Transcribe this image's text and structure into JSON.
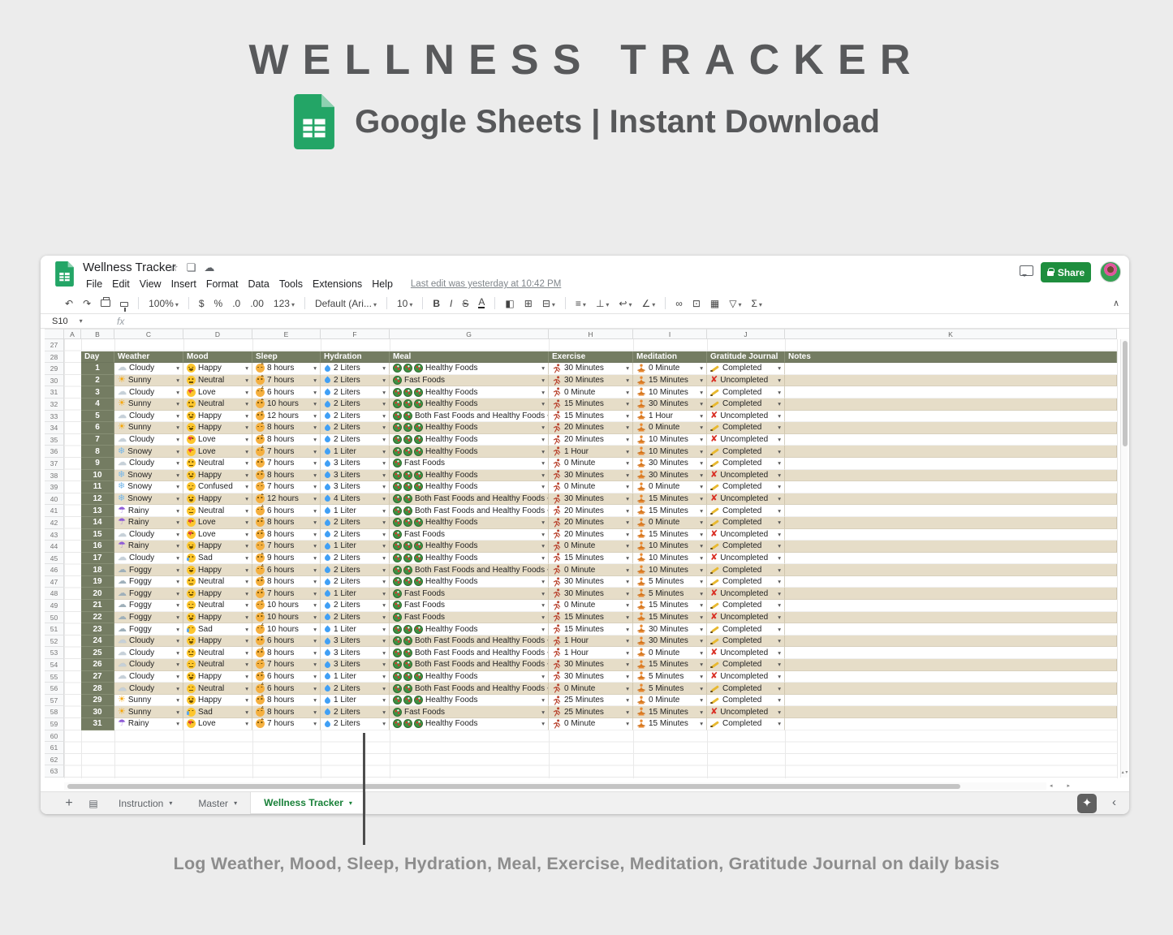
{
  "hero": {
    "title": "WELLNESS TRACKER",
    "subtitle": "Google Sheets | Instant Download"
  },
  "caption": "Log Weather, Mood, Sleep, Hydration, Meal, Exercise, Meditation, Gratitude Journal on daily basis",
  "colors": {
    "sheets_green": "#23a566",
    "share_green": "#1e8e3e",
    "active_tab_green": "#188038",
    "header_olive": "#747c62",
    "row_beige": "#e6ddc8",
    "uncompleted_red": "#d93025"
  },
  "window": {
    "doc_title": "Wellness Tracker",
    "menus": [
      "File",
      "Edit",
      "View",
      "Insert",
      "Format",
      "Data",
      "Tools",
      "Extensions",
      "Help"
    ],
    "last_edit": "Last edit was yesterday at 10:42 PM",
    "share_label": "Share",
    "name_box": "S10",
    "fx_label": "fx",
    "toolbar": [
      {
        "name": "undo-icon",
        "glyph": "↶"
      },
      {
        "name": "redo-icon",
        "glyph": "↷"
      },
      {
        "name": "print-icon",
        "css": "i-print"
      },
      {
        "name": "paint-format-icon",
        "css": "i-paint"
      },
      {
        "name": "divider"
      },
      {
        "name": "zoom-select",
        "glyph": "100%",
        "dd": true
      },
      {
        "name": "divider"
      },
      {
        "name": "currency-icon",
        "glyph": "$"
      },
      {
        "name": "percent-icon",
        "glyph": "%"
      },
      {
        "name": "decrease-decimal-icon",
        "glyph": ".0"
      },
      {
        "name": "increase-decimal-icon",
        "glyph": ".00"
      },
      {
        "name": "more-formats-icon",
        "glyph": "123",
        "dd": true
      },
      {
        "name": "divider"
      },
      {
        "name": "font-select",
        "glyph": "Default (Ari...",
        "dd": true
      },
      {
        "name": "divider"
      },
      {
        "name": "font-size-select",
        "glyph": "10",
        "dd": true
      },
      {
        "name": "divider"
      },
      {
        "name": "bold-icon",
        "glyph": "B",
        "cls": "b"
      },
      {
        "name": "italic-icon",
        "glyph": "I",
        "cls": "i"
      },
      {
        "name": "strikethrough-icon",
        "glyph": "S",
        "cls": "s"
      },
      {
        "name": "text-color-icon",
        "glyph": "A",
        "cls": "a"
      },
      {
        "name": "divider"
      },
      {
        "name": "fill-color-icon",
        "glyph": "◧"
      },
      {
        "name": "borders-icon",
        "glyph": "⊞"
      },
      {
        "name": "merge-cells-icon",
        "glyph": "⊟",
        "dd": true
      },
      {
        "name": "divider"
      },
      {
        "name": "horizontal-align-icon",
        "glyph": "≡",
        "dd": true
      },
      {
        "name": "vertical-align-icon",
        "glyph": "⊥",
        "dd": true
      },
      {
        "name": "text-wrap-icon",
        "glyph": "↩",
        "dd": true
      },
      {
        "name": "text-rotation-icon",
        "glyph": "∠",
        "dd": true
      },
      {
        "name": "divider"
      },
      {
        "name": "insert-link-icon",
        "glyph": "∞"
      },
      {
        "name": "insert-comment-icon",
        "glyph": "⊡"
      },
      {
        "name": "insert-chart-icon",
        "glyph": "▦"
      },
      {
        "name": "filter-icon",
        "glyph": "▽",
        "dd": true
      },
      {
        "name": "functions-icon",
        "glyph": "Σ",
        "dd": true
      }
    ],
    "collapse_glyph": "∧",
    "column_letters": [
      "A",
      "B",
      "C",
      "D",
      "E",
      "F",
      "G",
      "H",
      "I",
      "J",
      "K"
    ],
    "row_start": 27,
    "row_end": 63,
    "tabs": [
      {
        "label": "Instruction",
        "active": false
      },
      {
        "label": "Master",
        "active": false
      },
      {
        "label": "Wellness Tracker",
        "active": true
      }
    ],
    "tabbar_icons": {
      "add_sheet": "+",
      "all_sheets": "▤",
      "explore": "✦",
      "show_panel": "‹"
    },
    "titlebar_icons": {
      "star": "☆",
      "move_to_folder": "❏",
      "cloud_status": "☁"
    },
    "scroll_icons": {
      "up": "▴",
      "down": "▾",
      "left": "◂",
      "right": "▸"
    }
  },
  "table": {
    "headers": [
      "Day",
      "Weather",
      "Mood",
      "Sleep",
      "Hydration",
      "Meal",
      "Exercise",
      "Meditation",
      "Gratitude Journal",
      "Notes"
    ],
    "weather_glyphs": {
      "Sunny": "☀",
      "Cloudy": "☁",
      "Snowy": "❄",
      "Rainy": "☂",
      "Foggy": "☁"
    },
    "meal_icon_counts": {
      "Healthy Foods": 3,
      "Fast Foods": 1,
      "Both Fast Foods and Healthy Foods": 2
    },
    "dropdown_glyph": "▾",
    "rows": [
      {
        "day": 1,
        "weather": "Cloudy",
        "mood": "Happy",
        "sleep": "8 hours",
        "hydration": "2 Liters",
        "meal": "Healthy Foods",
        "exercise": "30 Minutes",
        "meditation": "0 Minute",
        "gratitude": "Completed",
        "notes": ""
      },
      {
        "day": 2,
        "weather": "Sunny",
        "mood": "Neutral",
        "sleep": "7 hours",
        "hydration": "2 Liters",
        "meal": "Fast Foods",
        "exercise": "30 Minutes",
        "meditation": "15 Minutes",
        "gratitude": "Uncompleted",
        "notes": ""
      },
      {
        "day": 3,
        "weather": "Cloudy",
        "mood": "Love",
        "sleep": "6 hours",
        "hydration": "2 Liters",
        "meal": "Healthy Foods",
        "exercise": "0 Minute",
        "meditation": "10 Minutes",
        "gratitude": "Completed",
        "notes": ""
      },
      {
        "day": 4,
        "weather": "Sunny",
        "mood": "Neutral",
        "sleep": "10 hours",
        "hydration": "2 Liters",
        "meal": "Healthy Foods",
        "exercise": "15 Minutes",
        "meditation": "30 Minutes",
        "gratitude": "Completed",
        "notes": ""
      },
      {
        "day": 5,
        "weather": "Cloudy",
        "mood": "Happy",
        "sleep": "12 hours",
        "hydration": "2 Liters",
        "meal": "Both Fast Foods and Healthy Foods",
        "exercise": "15 Minutes",
        "meditation": "1 Hour",
        "gratitude": "Uncompleted",
        "notes": ""
      },
      {
        "day": 6,
        "weather": "Sunny",
        "mood": "Happy",
        "sleep": "8 hours",
        "hydration": "2 Liters",
        "meal": "Healthy Foods",
        "exercise": "20 Minutes",
        "meditation": "0 Minute",
        "gratitude": "Completed",
        "notes": ""
      },
      {
        "day": 7,
        "weather": "Cloudy",
        "mood": "Love",
        "sleep": "8 hours",
        "hydration": "2 Liters",
        "meal": "Healthy Foods",
        "exercise": "20 Minutes",
        "meditation": "10 Minutes",
        "gratitude": "Uncompleted",
        "notes": ""
      },
      {
        "day": 8,
        "weather": "Snowy",
        "mood": "Love",
        "sleep": "7 hours",
        "hydration": "1 Liter",
        "meal": "Healthy Foods",
        "exercise": "1 Hour",
        "meditation": "10 Minutes",
        "gratitude": "Completed",
        "notes": ""
      },
      {
        "day": 9,
        "weather": "Cloudy",
        "mood": "Neutral",
        "sleep": "7 hours",
        "hydration": "3 Liters",
        "meal": "Fast Foods",
        "exercise": "0 Minute",
        "meditation": "30 Minutes",
        "gratitude": "Completed",
        "notes": ""
      },
      {
        "day": 10,
        "weather": "Snowy",
        "mood": "Happy",
        "sleep": "8 hours",
        "hydration": "3 Liters",
        "meal": "Healthy Foods",
        "exercise": "30 Minutes",
        "meditation": "30 Minutes",
        "gratitude": "Uncompleted",
        "notes": ""
      },
      {
        "day": 11,
        "weather": "Snowy",
        "mood": "Confused",
        "sleep": "7 hours",
        "hydration": "3 Liters",
        "meal": "Healthy Foods",
        "exercise": "0 Minute",
        "meditation": "0 Minute",
        "gratitude": "Completed",
        "notes": ""
      },
      {
        "day": 12,
        "weather": "Snowy",
        "mood": "Happy",
        "sleep": "12 hours",
        "hydration": "4 Liters",
        "meal": "Both Fast Foods and Healthy Foods",
        "exercise": "30 Minutes",
        "meditation": "15 Minutes",
        "gratitude": "Uncompleted",
        "notes": ""
      },
      {
        "day": 13,
        "weather": "Rainy",
        "mood": "Neutral",
        "sleep": "6 hours",
        "hydration": "1 Liter",
        "meal": "Both Fast Foods and Healthy Foods",
        "exercise": "20 Minutes",
        "meditation": "15 Minutes",
        "gratitude": "Completed",
        "notes": ""
      },
      {
        "day": 14,
        "weather": "Rainy",
        "mood": "Love",
        "sleep": "8 hours",
        "hydration": "2 Liters",
        "meal": "Healthy Foods",
        "exercise": "20 Minutes",
        "meditation": "0 Minute",
        "gratitude": "Completed",
        "notes": ""
      },
      {
        "day": 15,
        "weather": "Cloudy",
        "mood": "Love",
        "sleep": "8 hours",
        "hydration": "2 Liters",
        "meal": "Fast Foods",
        "exercise": "20 Minutes",
        "meditation": "15 Minutes",
        "gratitude": "Uncompleted",
        "notes": ""
      },
      {
        "day": 16,
        "weather": "Rainy",
        "mood": "Happy",
        "sleep": "7 hours",
        "hydration": "1 Liter",
        "meal": "Healthy Foods",
        "exercise": "0 Minute",
        "meditation": "10 Minutes",
        "gratitude": "Completed",
        "notes": ""
      },
      {
        "day": 17,
        "weather": "Cloudy",
        "mood": "Sad",
        "sleep": "9 hours",
        "hydration": "2 Liters",
        "meal": "Healthy Foods",
        "exercise": "15 Minutes",
        "meditation": "10 Minutes",
        "gratitude": "Uncompleted",
        "notes": ""
      },
      {
        "day": 18,
        "weather": "Foggy",
        "mood": "Happy",
        "sleep": "6 hours",
        "hydration": "2 Liters",
        "meal": "Both Fast Foods and Healthy Foods",
        "exercise": "0 Minute",
        "meditation": "10 Minutes",
        "gratitude": "Completed",
        "notes": ""
      },
      {
        "day": 19,
        "weather": "Foggy",
        "mood": "Neutral",
        "sleep": "8 hours",
        "hydration": "2 Liters",
        "meal": "Healthy Foods",
        "exercise": "30 Minutes",
        "meditation": "5 Minutes",
        "gratitude": "Completed",
        "notes": ""
      },
      {
        "day": 20,
        "weather": "Foggy",
        "mood": "Happy",
        "sleep": "7 hours",
        "hydration": "1 Liter",
        "meal": "Fast Foods",
        "exercise": "30 Minutes",
        "meditation": "5 Minutes",
        "gratitude": "Uncompleted",
        "notes": ""
      },
      {
        "day": 21,
        "weather": "Foggy",
        "mood": "Neutral",
        "sleep": "10 hours",
        "hydration": "2 Liters",
        "meal": "Fast Foods",
        "exercise": "0 Minute",
        "meditation": "15 Minutes",
        "gratitude": "Completed",
        "notes": ""
      },
      {
        "day": 22,
        "weather": "Foggy",
        "mood": "Happy",
        "sleep": "10 hours",
        "hydration": "2 Liters",
        "meal": "Fast Foods",
        "exercise": "15 Minutes",
        "meditation": "15 Minutes",
        "gratitude": "Uncompleted",
        "notes": ""
      },
      {
        "day": 23,
        "weather": "Foggy",
        "mood": "Sad",
        "sleep": "10 hours",
        "hydration": "1 Liter",
        "meal": "Healthy Foods",
        "exercise": "15 Minutes",
        "meditation": "30 Minutes",
        "gratitude": "Completed",
        "notes": ""
      },
      {
        "day": 24,
        "weather": "Cloudy",
        "mood": "Happy",
        "sleep": "6 hours",
        "hydration": "3 Liters",
        "meal": "Both Fast Foods and Healthy Foods",
        "exercise": "1 Hour",
        "meditation": "30 Minutes",
        "gratitude": "Completed",
        "notes": ""
      },
      {
        "day": 25,
        "weather": "Cloudy",
        "mood": "Neutral",
        "sleep": "8 hours",
        "hydration": "3 Liters",
        "meal": "Both Fast Foods and Healthy Foods",
        "exercise": "1 Hour",
        "meditation": "0 Minute",
        "gratitude": "Uncompleted",
        "notes": ""
      },
      {
        "day": 26,
        "weather": "Cloudy",
        "mood": "Neutral",
        "sleep": "7 hours",
        "hydration": "3 Liters",
        "meal": "Both Fast Foods and Healthy Foods",
        "exercise": "30 Minutes",
        "meditation": "15 Minutes",
        "gratitude": "Completed",
        "notes": ""
      },
      {
        "day": 27,
        "weather": "Cloudy",
        "mood": "Happy",
        "sleep": "6 hours",
        "hydration": "1 Liter",
        "meal": "Healthy Foods",
        "exercise": "30 Minutes",
        "meditation": "5 Minutes",
        "gratitude": "Uncompleted",
        "notes": ""
      },
      {
        "day": 28,
        "weather": "Cloudy",
        "mood": "Neutral",
        "sleep": "6 hours",
        "hydration": "2 Liters",
        "meal": "Both Fast Foods and Healthy Foods",
        "exercise": "0 Minute",
        "meditation": "5 Minutes",
        "gratitude": "Completed",
        "notes": ""
      },
      {
        "day": 29,
        "weather": "Sunny",
        "mood": "Happy",
        "sleep": "8 hours",
        "hydration": "1 Liter",
        "meal": "Healthy Foods",
        "exercise": "25 Minutes",
        "meditation": "0 Minute",
        "gratitude": "Completed",
        "notes": ""
      },
      {
        "day": 30,
        "weather": "Sunny",
        "mood": "Sad",
        "sleep": "8 hours",
        "hydration": "2 Liters",
        "meal": "Fast Foods",
        "exercise": "25 Minutes",
        "meditation": "15 Minutes",
        "gratitude": "Uncompleted",
        "notes": ""
      },
      {
        "day": 31,
        "weather": "Rainy",
        "mood": "Love",
        "sleep": "7 hours",
        "hydration": "2 Liters",
        "meal": "Healthy Foods",
        "exercise": "0 Minute",
        "meditation": "15 Minutes",
        "gratitude": "Completed",
        "notes": ""
      }
    ]
  }
}
